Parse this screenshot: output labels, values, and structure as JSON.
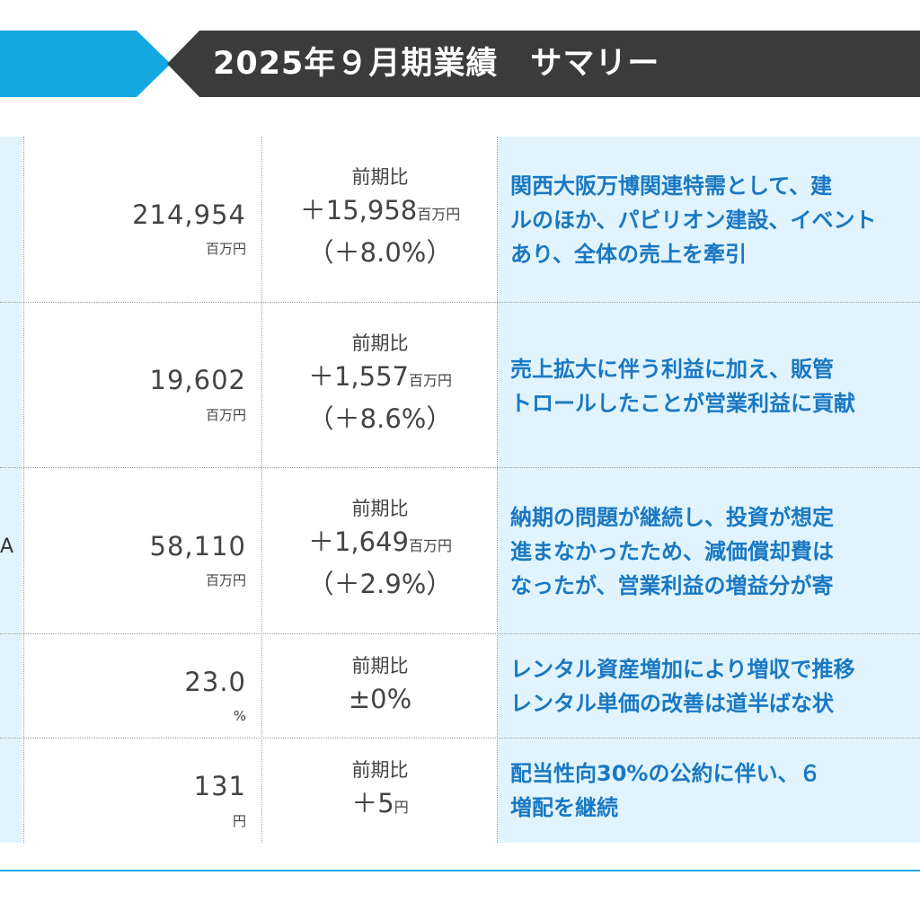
{
  "header": {
    "title": "2025年９月期業績　サマリー"
  },
  "rows": [
    {
      "left_fragment": "",
      "value": "214,954",
      "unit": "百万円",
      "cmp_label": "前期比",
      "cmp_change": "＋15,958",
      "cmp_unit": "百万円",
      "cmp_pct": "（＋8.0%）",
      "comment": [
        "関西大阪万博関連特需として、建",
        "ルのほか、パビリオン建設、イベント",
        "あり、全体の売上を牽引"
      ]
    },
    {
      "left_fragment": "",
      "value": "19,602",
      "unit": "百万円",
      "cmp_label": "前期比",
      "cmp_change": "＋1,557",
      "cmp_unit": "百万円",
      "cmp_pct": "（＋8.6%）",
      "comment": [
        "売上拡大に伴う利益に加え、販管",
        "トロールしたことが営業利益に貢献"
      ]
    },
    {
      "left_fragment": "A",
      "value": "58,110",
      "unit": "百万円",
      "cmp_label": "前期比",
      "cmp_change": "＋1,649",
      "cmp_unit": "百万円",
      "cmp_pct": "（＋2.9%）",
      "comment": [
        "納期の問題が継続し、投資が想定",
        "進まなかったため、減価償却費は",
        "なったが、営業利益の増益分が寄"
      ]
    },
    {
      "left_fragment": "",
      "value": "23.0",
      "unit": "%",
      "cmp_label": "前期比",
      "cmp_change": "±0%",
      "cmp_unit": "",
      "cmp_pct": "",
      "comment": [
        "レンタル資産増加により増収で推移",
        "レンタル単価の改善は道半ばな状"
      ]
    },
    {
      "left_fragment": "",
      "value": "131",
      "unit": "円",
      "cmp_label": "前期比",
      "cmp_change": "＋5",
      "cmp_unit": "円",
      "cmp_pct": "",
      "comment": [
        "配当性向30%の公約に伴い、６",
        "増配を継続"
      ]
    }
  ]
}
